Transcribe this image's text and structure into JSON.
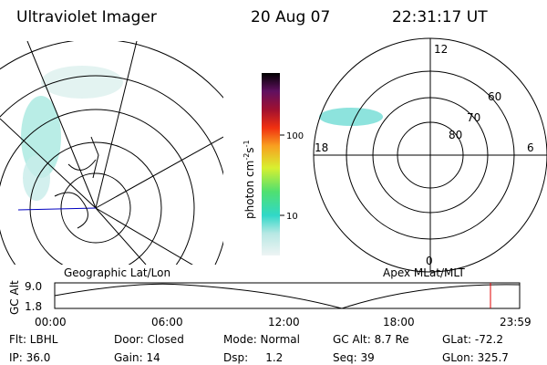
{
  "header": {
    "title": "Ultraviolet Imager",
    "date": "20 Aug 07",
    "time": "22:31:17 UT"
  },
  "colorbar": {
    "label": [
      "photon cm",
      "-2",
      "s",
      "-1"
    ],
    "ticks": [
      "100",
      "10"
    ]
  },
  "left_map": {
    "caption": "Geographic Lat/Lon"
  },
  "right_map": {
    "caption": "Apex MLat/MLT",
    "mlt_labels": [
      "12",
      "18",
      "6",
      "0"
    ],
    "lat_labels": [
      "60",
      "70",
      "80"
    ]
  },
  "altitude_plot": {
    "ylabel": "GC Alt",
    "yticks": [
      "9.0",
      "1.8"
    ],
    "xticks": [
      "00:00",
      "06:00",
      "12:00",
      "18:00",
      "23:59"
    ]
  },
  "info": [
    [
      "Flt: LBHL",
      "Door: Closed",
      "Mode: Normal",
      "GC Alt: 8.7 Re",
      "GLat: -72.2"
    ],
    [
      "IP: 36.0",
      "Gain: 14",
      "Dsp:     1.2",
      "Seq: 39",
      "GLon: 325.7"
    ]
  ]
}
